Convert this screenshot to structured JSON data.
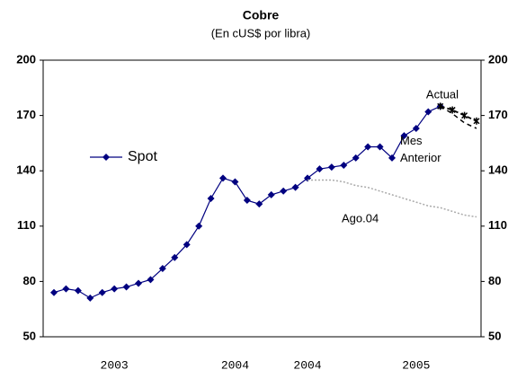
{
  "chart_data": {
    "type": "line",
    "title": "Cobre",
    "subtitle": "(En cUS$ por libra)",
    "categories": [
      null,
      null,
      null,
      null,
      null,
      "2003",
      null,
      null,
      null,
      null,
      null,
      null,
      null,
      null,
      null,
      "2004",
      null,
      null,
      null,
      null,
      null,
      "2004",
      null,
      null,
      null,
      null,
      null,
      null,
      null,
      null,
      "2005",
      null,
      null,
      null,
      null,
      null
    ],
    "series": [
      {
        "name": "Spot",
        "color": "#000080",
        "in_legend": true,
        "values": [
          74,
          76,
          75,
          71,
          74,
          76,
          77,
          79,
          81,
          87,
          93,
          100,
          110,
          125,
          136,
          134,
          124,
          122,
          127,
          129,
          131,
          136,
          141,
          142,
          143,
          147,
          153,
          153,
          147,
          159,
          163,
          172,
          175,
          null,
          null,
          null
        ]
      },
      {
        "name": "Actual",
        "color": "#000000",
        "in_legend": false,
        "values": [
          null,
          null,
          null,
          null,
          null,
          null,
          null,
          null,
          null,
          null,
          null,
          null,
          null,
          null,
          null,
          null,
          null,
          null,
          null,
          null,
          null,
          null,
          null,
          null,
          null,
          null,
          null,
          null,
          null,
          null,
          null,
          null,
          175,
          173,
          170,
          167
        ]
      },
      {
        "name": "Mes Anterior",
        "color": "#000000",
        "in_legend": false,
        "values": [
          null,
          null,
          null,
          null,
          null,
          null,
          null,
          null,
          null,
          null,
          null,
          null,
          null,
          null,
          null,
          null,
          null,
          null,
          null,
          null,
          null,
          null,
          null,
          null,
          null,
          null,
          null,
          null,
          null,
          null,
          null,
          null,
          175,
          171,
          166,
          163
        ]
      },
      {
        "name": "Ago.04",
        "color": "#aaaaaa",
        "in_legend": false,
        "values": [
          null,
          null,
          null,
          null,
          null,
          null,
          null,
          null,
          null,
          null,
          null,
          null,
          null,
          null,
          null,
          null,
          null,
          null,
          null,
          null,
          null,
          135,
          135,
          135,
          134,
          132,
          131,
          129,
          127,
          125,
          123,
          121,
          120,
          118,
          116,
          115
        ]
      }
    ],
    "ylim": [
      50,
      200
    ],
    "yticks": [
      50,
      80,
      110,
      140,
      170,
      200
    ],
    "y2lim": [
      50,
      200
    ],
    "y2ticks": [
      50,
      80,
      110,
      140,
      170,
      200
    ],
    "grid": false
  }
}
